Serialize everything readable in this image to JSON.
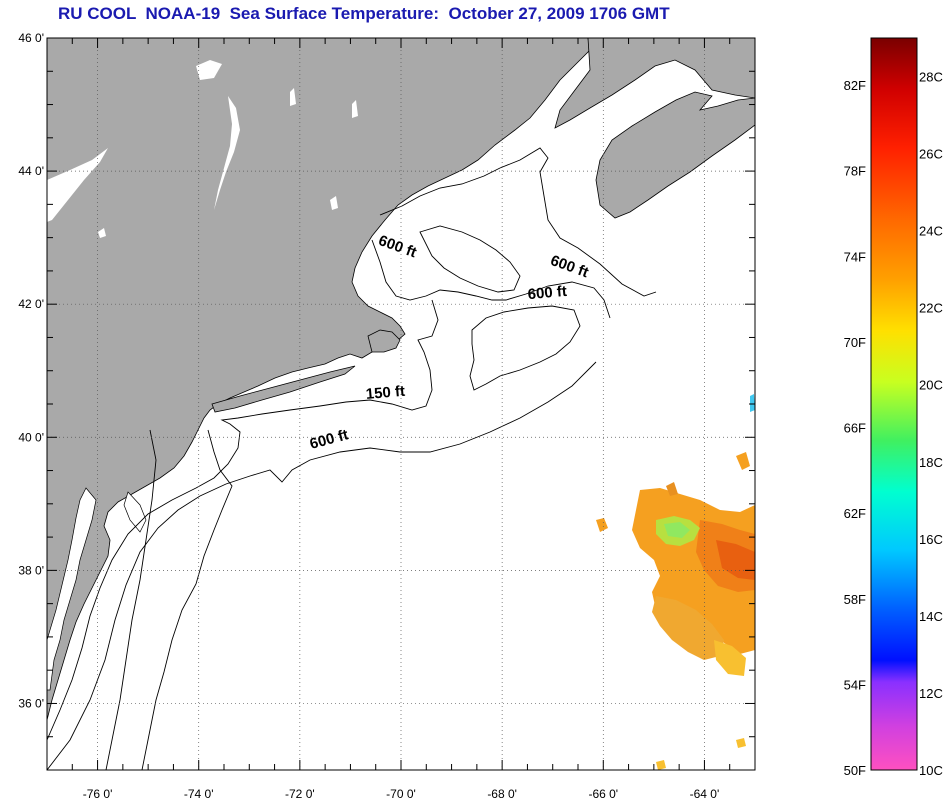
{
  "title": "RU COOL  NOAA-19  Sea Surface Temperature:  October 27, 2009 1706 GMT",
  "map": {
    "lon_range": [
      -77,
      -63
    ],
    "lat_range": [
      35,
      46
    ],
    "lat_ticks": [
      {
        "value": 46,
        "label": "46 0'"
      },
      {
        "value": 44,
        "label": "44 0'"
      },
      {
        "value": 42,
        "label": "42 0'"
      },
      {
        "value": 40,
        "label": "40 0'"
      },
      {
        "value": 38,
        "label": "38 0'"
      },
      {
        "value": 36,
        "label": "36 0'"
      }
    ],
    "lon_ticks": [
      {
        "value": -76,
        "label": "-76 0'"
      },
      {
        "value": -74,
        "label": "-74 0'"
      },
      {
        "value": -72,
        "label": "-72 0'"
      },
      {
        "value": -70,
        "label": "-70 0'"
      },
      {
        "value": -68,
        "label": "-68 0'"
      },
      {
        "value": -66,
        "label": "-66 0'"
      },
      {
        "value": -64,
        "label": "-64 0'"
      }
    ],
    "contour_labels": [
      {
        "text": "600 ft",
        "lon": -70.1,
        "lat": 42.8
      },
      {
        "text": "600 ft",
        "lon": -66.7,
        "lat": 42.5
      },
      {
        "text": "600 ft",
        "lon": -67.1,
        "lat": 42.1
      },
      {
        "text": "150 ft",
        "lon": -70.3,
        "lat": 40.6
      },
      {
        "text": "600 ft",
        "lon": -71.4,
        "lat": 39.9
      }
    ],
    "colors": {
      "land": "#a9a9a9",
      "ocean": "#ffffff",
      "grid": "#555555"
    }
  },
  "colorbar": {
    "range_c": [
      10,
      29
    ],
    "celsius_labels": [
      "28C",
      "26C",
      "24C",
      "22C",
      "20C",
      "18C",
      "16C",
      "14C",
      "12C",
      "10C"
    ],
    "fahrenheit_labels": [
      "82F",
      "78F",
      "74F",
      "70F",
      "66F",
      "62F",
      "58F",
      "54F",
      "50F"
    ],
    "gradient_stops": [
      "#7a0000",
      "#d00000",
      "#ff2000",
      "#ff6a00",
      "#ffa000",
      "#ffe000",
      "#c8ff20",
      "#40f060",
      "#00ffd0",
      "#00c8ff",
      "#0060ff",
      "#0010ff",
      "#8a30ff",
      "#d040e0",
      "#ff50c0"
    ]
  }
}
